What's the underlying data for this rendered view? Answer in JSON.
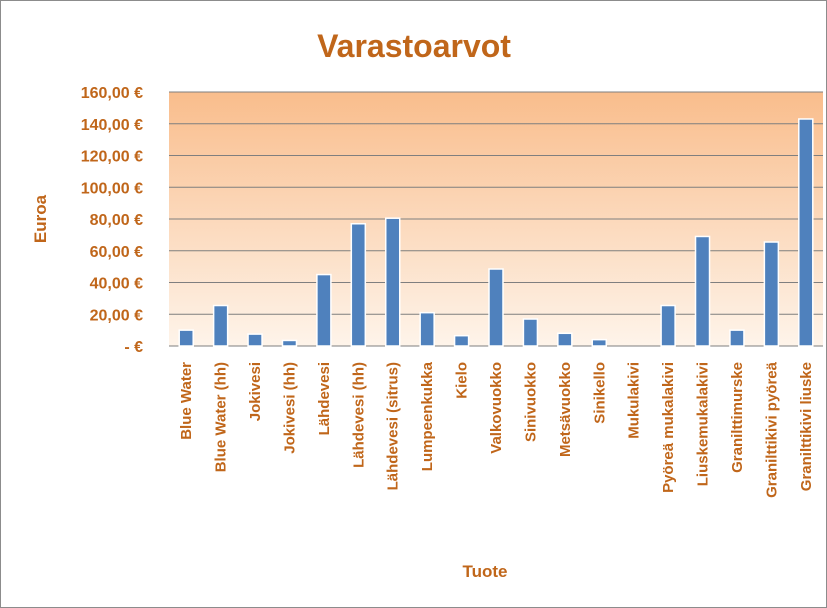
{
  "chart_data": {
    "type": "bar",
    "title": "Varastoarvot",
    "xlabel": "Tuote",
    "ylabel": "Euroa",
    "ylim": [
      0,
      160
    ],
    "y_tick_values": [
      0,
      20,
      40,
      60,
      80,
      100,
      120,
      140,
      160
    ],
    "y_tick_labels": [
      "-  €",
      "20,00 €",
      "40,00 €",
      "60,00 €",
      "80,00 €",
      "100,00 €",
      "120,00 €",
      "140,00 €",
      "160,00 €"
    ],
    "grid": true,
    "legend": "none",
    "categories": [
      "Blue Water",
      "Blue Water (hh)",
      "Jokivesi",
      "Jokivesi (hh)",
      "Lähdevesi",
      "Lähdevesi (hh)",
      "Lähdevesi (sitrus)",
      "Lumpeenkukka",
      "Kielo",
      "Valkovuokko",
      "Sinivuokko",
      "Metsävuokko",
      "Sinikello",
      "Mukulakivi",
      "Pyöreä mukalakivi",
      "Liuskemukalakivi",
      "Granilttimurske",
      "Granilttikivi pyöreä",
      "Granilttikivi liuske"
    ],
    "values": [
      10,
      25.5,
      7.5,
      3.5,
      45,
      77,
      80.5,
      21,
      6.5,
      48.5,
      17,
      8,
      4,
      0,
      25.5,
      69,
      10,
      65.5,
      143
    ],
    "colors": {
      "bar": "#4f81bd",
      "text": "#c0661a",
      "plot_top": "#fddcc0",
      "plot_bottom": "#fef6ee"
    }
  }
}
